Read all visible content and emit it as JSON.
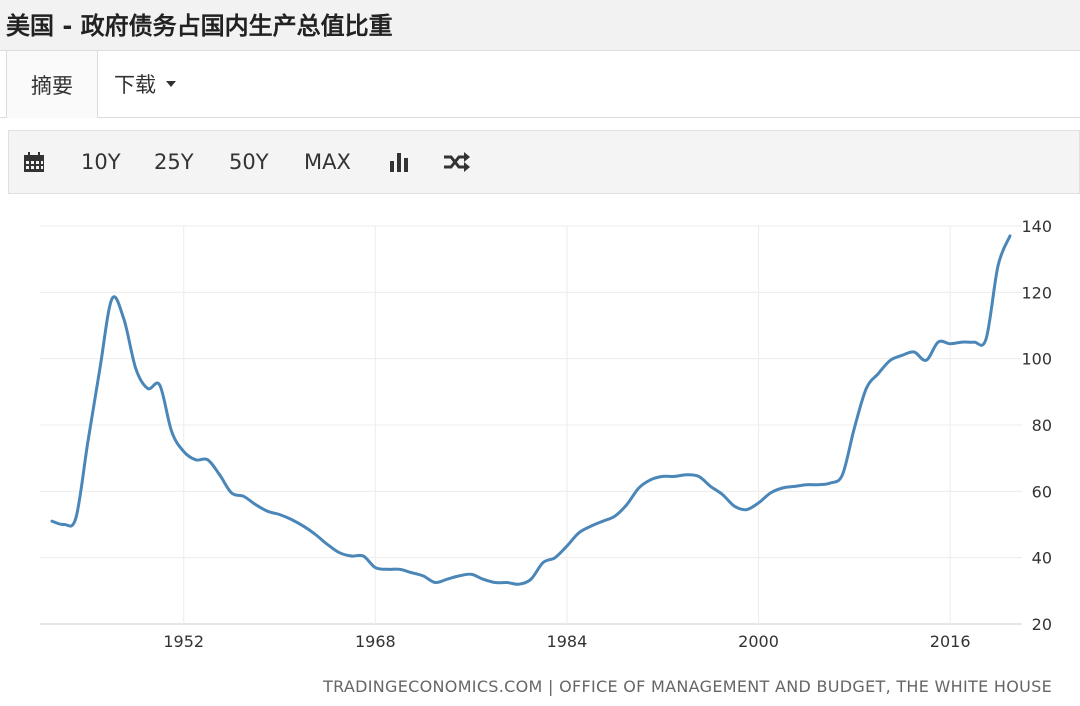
{
  "header": {
    "title": "美国 - 政府债务占国内生产总值比重"
  },
  "tabs": [
    {
      "label": "摘要",
      "active": true
    },
    {
      "label": "下载",
      "has_dropdown": true
    }
  ],
  "toolbar": {
    "calendar_icon": "calendar-icon",
    "ranges": [
      "10Y",
      "25Y",
      "50Y",
      "MAX"
    ],
    "chart_type_icon": "bar-chart-icon",
    "compare_icon": "shuffle-icon"
  },
  "footer": {
    "source": "TRADINGECONOMICS.COM | OFFICE OF MANAGEMENT AND BUDGET, THE WHITE HOUSE"
  },
  "chart_data": {
    "type": "line",
    "title": "",
    "xlabel": "",
    "ylabel": "",
    "xlim": [
      1940,
      2022
    ],
    "ylim": [
      20,
      140
    ],
    "x_ticks": [
      1952,
      1968,
      1984,
      2000,
      2016
    ],
    "y_ticks": [
      20,
      40,
      60,
      80,
      100,
      120,
      140
    ],
    "y_axis_side": "right",
    "grid": true,
    "line_color": "#4a86b8",
    "series": [
      {
        "x": [
          1941,
          1942,
          1943,
          1944,
          1945,
          1946,
          1947,
          1948,
          1949,
          1950,
          1951,
          1952,
          1953,
          1954,
          1955,
          1956,
          1957,
          1958,
          1959,
          1960,
          1961,
          1962,
          1963,
          1964,
          1965,
          1966,
          1967,
          1968,
          1969,
          1970,
          1971,
          1972,
          1973,
          1974,
          1975,
          1976,
          1977,
          1978,
          1979,
          1980,
          1981,
          1982,
          1983,
          1984,
          1985,
          1986,
          1987,
          1988,
          1989,
          1990,
          1991,
          1992,
          1993,
          1994,
          1995,
          1996,
          1997,
          1998,
          1999,
          2000,
          2001,
          2002,
          2003,
          2004,
          2005,
          2006,
          2007,
          2008,
          2009,
          2010,
          2011,
          2012,
          2013,
          2014,
          2015,
          2016,
          2017,
          2018,
          2019,
          2020,
          2021
        ],
        "y": [
          51,
          50,
          52,
          75,
          97,
          118,
          112,
          97,
          91,
          92,
          78,
          72,
          69.5,
          69.5,
          65,
          59.5,
          58.5,
          56,
          54,
          53,
          51.5,
          49.5,
          47,
          44,
          41.5,
          40.5,
          40.5,
          37,
          36.5,
          36.5,
          35.5,
          34.5,
          32.5,
          33.5,
          34.5,
          35,
          33.5,
          32.5,
          32.5,
          32,
          33.5,
          38.5,
          40,
          43.5,
          47.5,
          49.5,
          51,
          52.5,
          56,
          61,
          63.5,
          64.5,
          64.5,
          65,
          64.5,
          61.5,
          59,
          55.5,
          54.5,
          56.5,
          59.5,
          61,
          61.5,
          62,
          62,
          62.5,
          65,
          79,
          91,
          95.5,
          99.5,
          101,
          102,
          99.5,
          105,
          104.5,
          105,
          105,
          106,
          128,
          137
        ]
      }
    ]
  }
}
